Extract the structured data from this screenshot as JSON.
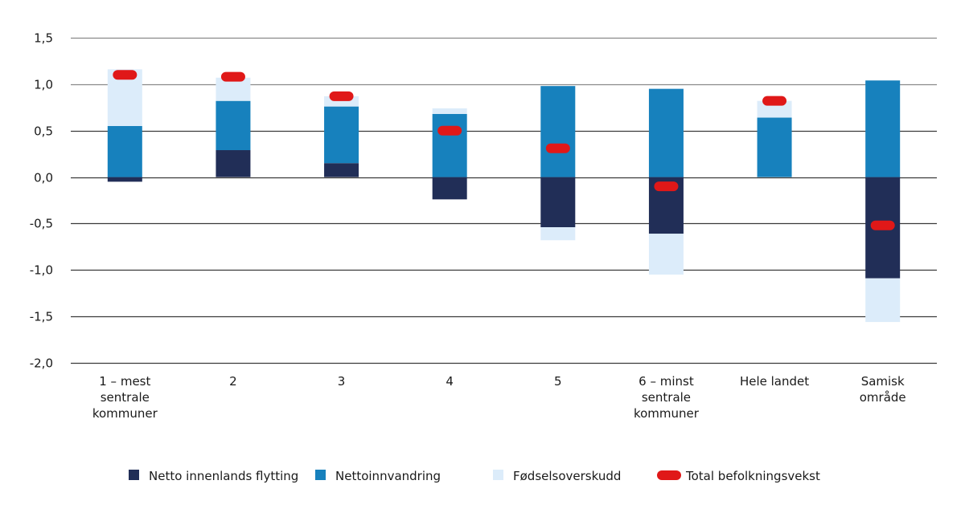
{
  "chart_data": {
    "type": "bar",
    "stacked": true,
    "title": "",
    "xlabel": "",
    "ylabel": "",
    "ylim": [
      -2.0,
      1.5
    ],
    "yticks": [
      1.5,
      1.0,
      0.5,
      0.0,
      -0.5,
      -1.0,
      -1.5,
      -2.0
    ],
    "ytick_labels": [
      "1,5",
      "1,0",
      "0,5",
      "0,0",
      "-0,5",
      "-1,0",
      "-1,5",
      "-2,0"
    ],
    "grid": true,
    "legend_position": "bottom",
    "categories": [
      [
        "1 – mest",
        "sentrale",
        "kommuner"
      ],
      [
        "2"
      ],
      [
        "3"
      ],
      [
        "4"
      ],
      [
        "5"
      ],
      [
        "6 – minst",
        "sentrale",
        "kommuner"
      ],
      [
        "Hele landet"
      ],
      [
        "Samisk",
        "område"
      ]
    ],
    "series": [
      {
        "name": "Netto innenlands flytting",
        "kind": "bar",
        "color": "#212e57",
        "values": [
          -0.05,
          0.29,
          0.15,
          -0.24,
          -0.54,
          -0.61,
          0.0,
          -1.09
        ]
      },
      {
        "name": "Nettoinnvandring",
        "kind": "bar",
        "color": "#1781bd",
        "values": [
          0.55,
          0.53,
          0.61,
          0.68,
          0.98,
          0.95,
          0.64,
          1.04
        ]
      },
      {
        "name": "Fødselsoverskudd",
        "kind": "bar",
        "color": "#dcecfa",
        "values": [
          0.61,
          0.25,
          0.11,
          0.06,
          -0.14,
          -0.44,
          0.18,
          -0.47
        ]
      },
      {
        "name": "Total befolkningsvekst",
        "kind": "marker",
        "color": "#e01818",
        "values": [
          1.1,
          1.08,
          0.87,
          0.5,
          0.31,
          -0.1,
          0.82,
          -0.52
        ]
      }
    ]
  }
}
